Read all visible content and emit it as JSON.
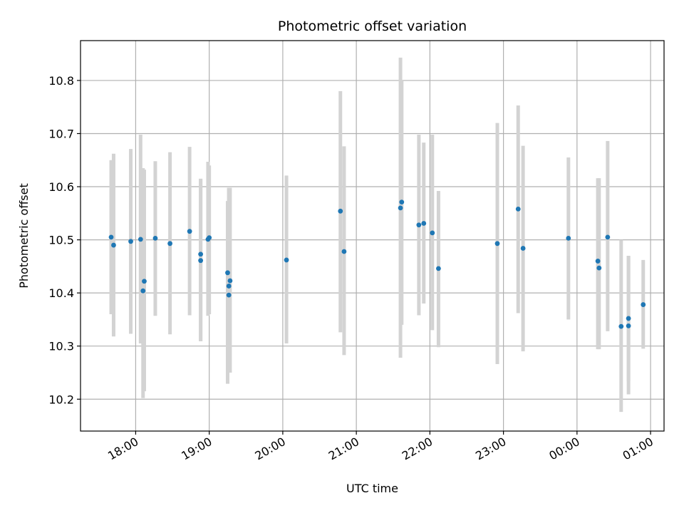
{
  "chart_data": {
    "type": "scatter",
    "title": "Photometric offset variation",
    "xlabel": "UTC time",
    "ylabel": "Photometric offset",
    "grid": true,
    "colors": {
      "points": "#1f77b4",
      "errorbars": "#d3d3d3",
      "grid": "#b0b0b0"
    },
    "xlim": [
      "17:15",
      "01:11"
    ],
    "ylim": [
      10.14,
      10.875
    ],
    "x_ticks": [
      "18:00",
      "19:00",
      "20:00",
      "21:00",
      "22:00",
      "23:00",
      "00:00",
      "01:00"
    ],
    "y_ticks": [
      "10.2",
      "10.3",
      "10.4",
      "10.5",
      "10.6",
      "10.7",
      "10.8"
    ],
    "points": [
      {
        "x": "17:40",
        "y": 10.505,
        "err_low": 10.36,
        "err_high": 10.65
      },
      {
        "x": "17:42",
        "y": 10.49,
        "err_low": 10.318,
        "err_high": 10.662
      },
      {
        "x": "17:56",
        "y": 10.497,
        "err_low": 10.323,
        "err_high": 10.671
      },
      {
        "x": "18:04",
        "y": 10.501,
        "err_low": 10.305,
        "err_high": 10.698
      },
      {
        "x": "18:06",
        "y": 10.404,
        "err_low": 10.202,
        "err_high": 10.635
      },
      {
        "x": "18:07",
        "y": 10.422,
        "err_low": 10.215,
        "err_high": 10.632
      },
      {
        "x": "18:16",
        "y": 10.503,
        "err_low": 10.357,
        "err_high": 10.648
      },
      {
        "x": "18:28",
        "y": 10.493,
        "err_low": 10.322,
        "err_high": 10.665
      },
      {
        "x": "18:44",
        "y": 10.516,
        "err_low": 10.358,
        "err_high": 10.675
      },
      {
        "x": "18:53",
        "y": 10.473,
        "err_low": 10.309,
        "err_high": 10.615
      },
      {
        "x": "18:53",
        "y": 10.461,
        "err_low": 10.309,
        "err_high": 10.615
      },
      {
        "x": "18:59",
        "y": 10.501,
        "err_low": 10.357,
        "err_high": 10.647
      },
      {
        "x": "19:00",
        "y": 10.504,
        "err_low": 10.36,
        "err_high": 10.64
      },
      {
        "x": "19:15",
        "y": 10.438,
        "err_low": 10.229,
        "err_high": 10.573
      },
      {
        "x": "19:16",
        "y": 10.413,
        "err_low": 10.3,
        "err_high": 10.598
      },
      {
        "x": "19:16",
        "y": 10.396,
        "err_low": 10.25,
        "err_high": 10.598
      },
      {
        "x": "19:17",
        "y": 10.423,
        "err_low": 10.25,
        "err_high": 10.598
      },
      {
        "x": "20:03",
        "y": 10.462,
        "err_low": 10.305,
        "err_high": 10.621
      },
      {
        "x": "20:47",
        "y": 10.554,
        "err_low": 10.326,
        "err_high": 10.78
      },
      {
        "x": "20:50",
        "y": 10.478,
        "err_low": 10.283,
        "err_high": 10.676
      },
      {
        "x": "21:36",
        "y": 10.56,
        "err_low": 10.278,
        "err_high": 10.843
      },
      {
        "x": "21:37",
        "y": 10.571,
        "err_low": 10.34,
        "err_high": 10.8
      },
      {
        "x": "21:51",
        "y": 10.528,
        "err_low": 10.358,
        "err_high": 10.698
      },
      {
        "x": "21:55",
        "y": 10.531,
        "err_low": 10.38,
        "err_high": 10.683
      },
      {
        "x": "22:02",
        "y": 10.513,
        "err_low": 10.33,
        "err_high": 10.698
      },
      {
        "x": "22:07",
        "y": 10.446,
        "err_low": 10.298,
        "err_high": 10.592
      },
      {
        "x": "22:55",
        "y": 10.493,
        "err_low": 10.266,
        "err_high": 10.72
      },
      {
        "x": "23:12",
        "y": 10.558,
        "err_low": 10.362,
        "err_high": 10.753
      },
      {
        "x": "23:16",
        "y": 10.484,
        "err_low": 10.29,
        "err_high": 10.677
      },
      {
        "x": "23:53",
        "y": 10.503,
        "err_low": 10.35,
        "err_high": 10.655
      },
      {
        "x": "00:17",
        "y": 10.46,
        "err_low": 10.294,
        "err_high": 10.616
      },
      {
        "x": "00:18",
        "y": 10.447,
        "err_low": 10.294,
        "err_high": 10.616
      },
      {
        "x": "00:25",
        "y": 10.505,
        "err_low": 10.328,
        "err_high": 10.686
      },
      {
        "x": "00:36",
        "y": 10.337,
        "err_low": 10.176,
        "err_high": 10.5
      },
      {
        "x": "00:42",
        "y": 10.352,
        "err_low": 10.234,
        "err_high": 10.47
      },
      {
        "x": "00:42",
        "y": 10.338,
        "err_low": 10.209,
        "err_high": 10.47
      },
      {
        "x": "00:54",
        "y": 10.378,
        "err_low": 10.295,
        "err_high": 10.462
      }
    ]
  }
}
